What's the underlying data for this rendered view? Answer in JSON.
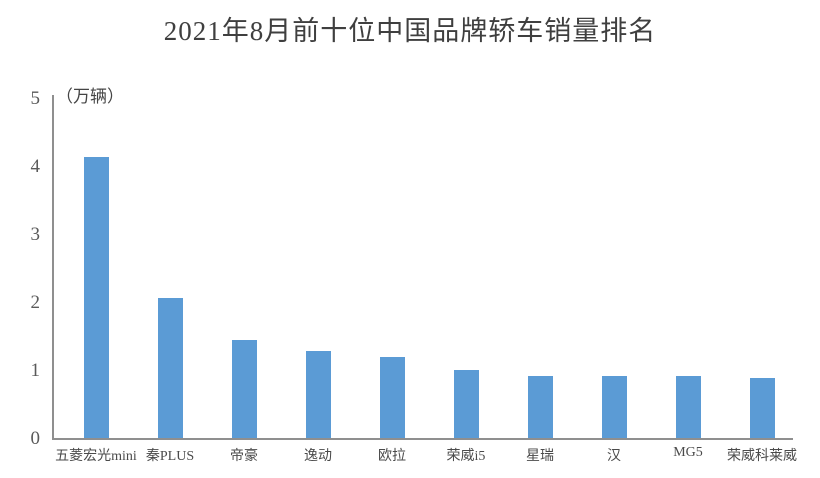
{
  "chart_data": {
    "type": "bar",
    "title": "2021年8月前十位中国品牌轿车销量排名",
    "ylabel": "（万辆）",
    "xlabel": "",
    "categories": [
      "五菱宏光mini",
      "秦PLUS",
      "帝豪",
      "逸动",
      "欧拉",
      "荣威i5",
      "星瑞",
      "汉",
      "MG5",
      "荣威科莱威"
    ],
    "values": [
      4.15,
      2.08,
      1.45,
      1.3,
      1.2,
      1.02,
      0.93,
      0.92,
      0.92,
      0.9
    ],
    "ylim": [
      0,
      5
    ],
    "yticks": [
      0,
      1,
      2,
      3,
      4,
      5
    ],
    "grid": false,
    "legend": "none",
    "bar_color": "#5B9BD5",
    "axis_color": "#8f8f8f",
    "title_color": "#3f3f3f",
    "tick_color": "#5a5a5a"
  }
}
